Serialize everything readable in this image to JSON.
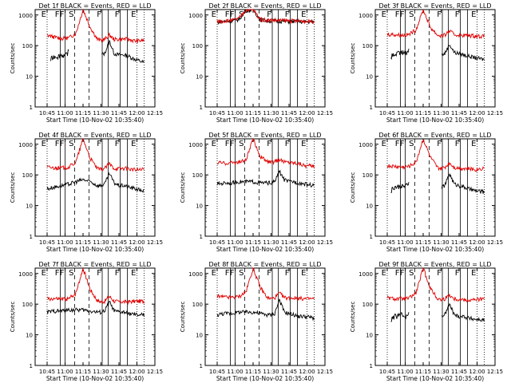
{
  "figure": {
    "x_tick_labels": [
      "10:45",
      "11:00",
      "11:15",
      "11:30",
      "11:45",
      "12:00",
      "12:15"
    ],
    "xlabel": "Start Time (10-Nov-02 10:35:40)",
    "ylabel": "Counts/sec",
    "y_tick_labels": [
      "1",
      "10",
      "100",
      "1000"
    ],
    "colors": {
      "events": "#000000",
      "lld": "#e00000"
    },
    "interval_markers": [
      {
        "label": "E",
        "time_min": 10.0,
        "style": "dotted"
      },
      {
        "label": "F",
        "time_min": 21.0,
        "style": "solid"
      },
      {
        "label": "F",
        "time_min": 25.0,
        "style": "solid"
      },
      {
        "label": "S",
        "time_min": 33.0,
        "style": "dashed"
      },
      {
        "label": "",
        "time_min": 45.0,
        "style": "dashed"
      },
      {
        "label": "F",
        "time_min": 56.0,
        "style": "solid"
      },
      {
        "label": "",
        "time_min": 61.0,
        "style": "solid"
      },
      {
        "label": "F",
        "time_min": 71.0,
        "style": "solid"
      },
      {
        "label": "",
        "time_min": 77.0,
        "style": "solid"
      },
      {
        "label": "E",
        "time_min": 85.0,
        "style": "dotted"
      },
      {
        "label": "",
        "time_min": 91.0,
        "style": "dotted"
      }
    ]
  },
  "chart_data": [
    {
      "type": "line",
      "title": "Det 1f BLACK = Events, RED = LLD",
      "xlabel": "Start Time (10-Nov-02 10:35:40)",
      "ylabel": "Counts/sec",
      "x_unit": "minutes after 10:35:40",
      "xlim": [
        0,
        100
      ],
      "ylim": [
        1,
        1500
      ],
      "yscale": "log",
      "x": [
        10,
        16,
        22,
        28,
        34,
        40,
        46,
        52,
        55,
        58,
        62,
        66,
        70,
        74,
        78,
        84,
        91
      ],
      "series": [
        {
          "name": "Events",
          "color": "#000000",
          "values": [
            null,
            null,
            null,
            null,
            null,
            null,
            null,
            null,
            50,
            55,
            140,
            55,
            50,
            50,
            45,
            35,
            28
          ]
        },
        {
          "name": "LLD",
          "color": "#e00000",
          "values": [
            220,
            190,
            170,
            180,
            250,
            1500,
            400,
            160,
            150,
            160,
            220,
            160,
            160,
            165,
            160,
            140,
            150
          ]
        }
      ],
      "early_events": {
        "x": [
          13,
          16,
          19,
          22,
          25,
          28
        ],
        "values": [
          35,
          45,
          45,
          50,
          45,
          65
        ]
      }
    },
    {
      "type": "line",
      "title": "Det 2f BLACK = Events, RED = LLD",
      "xlabel": "Start Time (10-Nov-02 10:35:40)",
      "ylabel": "Counts/sec",
      "x_unit": "minutes after 10:35:40",
      "xlim": [
        0,
        100
      ],
      "ylim": [
        1,
        1500
      ],
      "yscale": "log",
      "x": [
        10,
        16,
        22,
        28,
        34,
        40,
        46,
        52,
        58,
        64,
        70,
        76,
        82,
        88,
        91
      ],
      "series": [
        {
          "name": "Events",
          "color": "#000000",
          "values": [
            600,
            620,
            640,
            720,
            1400,
            1500,
            700,
            650,
            640,
            630,
            620,
            610,
            600,
            600,
            600
          ]
        },
        {
          "name": "LLD",
          "color": "#e00000",
          "values": [
            620,
            640,
            660,
            760,
            1500,
            1500,
            720,
            680,
            670,
            660,
            650,
            640,
            630,
            630,
            630
          ]
        }
      ]
    },
    {
      "type": "line",
      "title": "Det 3f BLACK = Events, RED = LLD",
      "xlabel": "Start Time (10-Nov-02 10:35:40)",
      "ylabel": "Counts/sec",
      "x_unit": "minutes after 10:35:40",
      "xlim": [
        0,
        100
      ],
      "ylim": [
        1,
        1500
      ],
      "yscale": "log",
      "x": [
        10,
        16,
        22,
        28,
        34,
        40,
        46,
        52,
        55,
        58,
        62,
        66,
        70,
        74,
        78,
        84,
        91
      ],
      "series": [
        {
          "name": "Events",
          "color": "#000000",
          "values": [
            null,
            null,
            null,
            null,
            null,
            null,
            null,
            null,
            50,
            55,
            110,
            60,
            55,
            50,
            45,
            40,
            35
          ]
        },
        {
          "name": "LLD",
          "color": "#e00000",
          "values": [
            240,
            230,
            220,
            230,
            330,
            1500,
            400,
            220,
            210,
            220,
            300,
            230,
            220,
            220,
            215,
            210,
            200
          ]
        }
      ],
      "early_events": {
        "x": [
          13,
          16,
          19,
          22,
          25,
          28
        ],
        "values": [
          45,
          50,
          55,
          60,
          55,
          70
        ]
      }
    },
    {
      "type": "line",
      "title": "Det 4f BLACK = Events, RED = LLD",
      "xlabel": "Start Time (10-Nov-02 10:35:40)",
      "ylabel": "Counts/sec",
      "x_unit": "minutes after 10:35:40",
      "xlim": [
        0,
        100
      ],
      "ylim": [
        1,
        1500
      ],
      "yscale": "log",
      "x": [
        10,
        16,
        22,
        28,
        34,
        40,
        46,
        52,
        55,
        58,
        62,
        66,
        70,
        74,
        78,
        84,
        91
      ],
      "series": [
        {
          "name": "Events",
          "color": "#000000",
          "values": [
            35,
            40,
            45,
            50,
            60,
            70,
            60,
            45,
            45,
            50,
            110,
            55,
            45,
            45,
            40,
            35,
            30
          ]
        },
        {
          "name": "LLD",
          "color": "#e00000",
          "values": [
            180,
            170,
            170,
            180,
            260,
            1500,
            350,
            160,
            150,
            165,
            230,
            165,
            160,
            165,
            160,
            145,
            150
          ]
        }
      ]
    },
    {
      "type": "line",
      "title": "Det 5f BLACK = Events, RED = LLD",
      "xlabel": "Start Time (10-Nov-02 10:35:40)",
      "ylabel": "Counts/sec",
      "x_unit": "minutes after 10:35:40",
      "xlim": [
        0,
        100
      ],
      "ylim": [
        1,
        1500
      ],
      "yscale": "log",
      "x": [
        10,
        16,
        22,
        28,
        34,
        40,
        46,
        52,
        55,
        58,
        62,
        66,
        70,
        74,
        78,
        84,
        91
      ],
      "series": [
        {
          "name": "Events",
          "color": "#000000",
          "values": [
            50,
            55,
            55,
            60,
            60,
            60,
            55,
            55,
            55,
            60,
            130,
            70,
            60,
            60,
            55,
            50,
            45
          ]
        },
        {
          "name": "LLD",
          "color": "#e00000",
          "values": [
            250,
            240,
            250,
            260,
            300,
            1500,
            400,
            270,
            260,
            270,
            320,
            270,
            260,
            250,
            240,
            200,
            190
          ]
        }
      ]
    },
    {
      "type": "line",
      "title": "Det 6f BLACK = Events, RED = LLD",
      "xlabel": "Start Time (10-Nov-02 10:35:40)",
      "ylabel": "Counts/sec",
      "x_unit": "minutes after 10:35:40",
      "xlim": [
        0,
        100
      ],
      "ylim": [
        1,
        1500
      ],
      "yscale": "log",
      "x": [
        10,
        16,
        22,
        28,
        34,
        40,
        46,
        52,
        55,
        58,
        62,
        66,
        70,
        74,
        78,
        84,
        91
      ],
      "series": [
        {
          "name": "Events",
          "color": "#000000",
          "values": [
            null,
            null,
            null,
            null,
            null,
            null,
            null,
            null,
            40,
            45,
            110,
            50,
            45,
            40,
            35,
            30,
            28
          ]
        },
        {
          "name": "LLD",
          "color": "#e00000",
          "values": [
            200,
            190,
            180,
            190,
            260,
            1500,
            380,
            170,
            160,
            175,
            250,
            175,
            170,
            165,
            160,
            150,
            170
          ]
        }
      ],
      "early_events": {
        "x": [
          13,
          16,
          19,
          22,
          25,
          28
        ],
        "values": [
          30,
          40,
          40,
          45,
          40,
          55
        ]
      }
    },
    {
      "type": "line",
      "title": "Det 7f BLACK = Events, RED = LLD",
      "xlabel": "Start Time (10-Nov-02 10:35:40)",
      "ylabel": "Counts/sec",
      "x_unit": "minutes after 10:35:40",
      "xlim": [
        0,
        100
      ],
      "ylim": [
        1,
        1500
      ],
      "yscale": "log",
      "x": [
        10,
        16,
        22,
        28,
        34,
        40,
        46,
        52,
        55,
        58,
        62,
        66,
        70,
        74,
        78,
        84,
        91
      ],
      "series": [
        {
          "name": "Events",
          "color": "#000000",
          "values": [
            55,
            60,
            60,
            65,
            65,
            65,
            60,
            55,
            55,
            60,
            120,
            60,
            55,
            55,
            50,
            45,
            45
          ]
        },
        {
          "name": "LLD",
          "color": "#e00000",
          "values": [
            150,
            150,
            145,
            150,
            230,
            1500,
            300,
            130,
            120,
            125,
            180,
            125,
            120,
            120,
            120,
            125,
            125
          ]
        }
      ]
    },
    {
      "type": "line",
      "title": "Det 8f BLACK = Events, RED = LLD",
      "xlabel": "Start Time (10-Nov-02 10:35:40)",
      "ylabel": "Counts/sec",
      "x_unit": "minutes after 10:35:40",
      "xlim": [
        0,
        100
      ],
      "ylim": [
        1,
        1500
      ],
      "yscale": "log",
      "x": [
        10,
        16,
        22,
        28,
        34,
        40,
        46,
        52,
        55,
        58,
        62,
        66,
        70,
        74,
        78,
        84,
        91
      ],
      "series": [
        {
          "name": "Events",
          "color": "#000000",
          "values": [
            45,
            50,
            50,
            55,
            55,
            55,
            50,
            45,
            45,
            50,
            140,
            55,
            50,
            45,
            40,
            40,
            35
          ]
        },
        {
          "name": "LLD",
          "color": "#e00000",
          "values": [
            180,
            170,
            165,
            175,
            250,
            1500,
            350,
            160,
            150,
            160,
            230,
            165,
            160,
            160,
            155,
            150,
            150
          ]
        }
      ]
    },
    {
      "type": "line",
      "title": "Det 9f BLACK = Events, RED = LLD",
      "xlabel": "Start Time (10-Nov-02 10:35:40)",
      "ylabel": "Counts/sec",
      "x_unit": "minutes after 10:35:40",
      "xlim": [
        0,
        100
      ],
      "ylim": [
        1,
        1500
      ],
      "yscale": "log",
      "x": [
        10,
        16,
        22,
        28,
        34,
        40,
        46,
        52,
        55,
        58,
        62,
        66,
        70,
        74,
        78,
        84,
        91
      ],
      "series": [
        {
          "name": "Events",
          "color": "#000000",
          "values": [
            null,
            null,
            null,
            null,
            null,
            null,
            null,
            null,
            40,
            45,
            100,
            45,
            40,
            40,
            35,
            32,
            30
          ]
        },
        {
          "name": "LLD",
          "color": "#e00000",
          "values": [
            160,
            150,
            150,
            155,
            230,
            1500,
            330,
            150,
            140,
            150,
            200,
            150,
            145,
            140,
            135,
            140,
            150
          ]
        }
      ],
      "early_events": {
        "x": [
          13,
          16,
          19,
          22,
          25,
          28
        ],
        "values": [
          30,
          40,
          42,
          45,
          40,
          55
        ]
      }
    }
  ]
}
